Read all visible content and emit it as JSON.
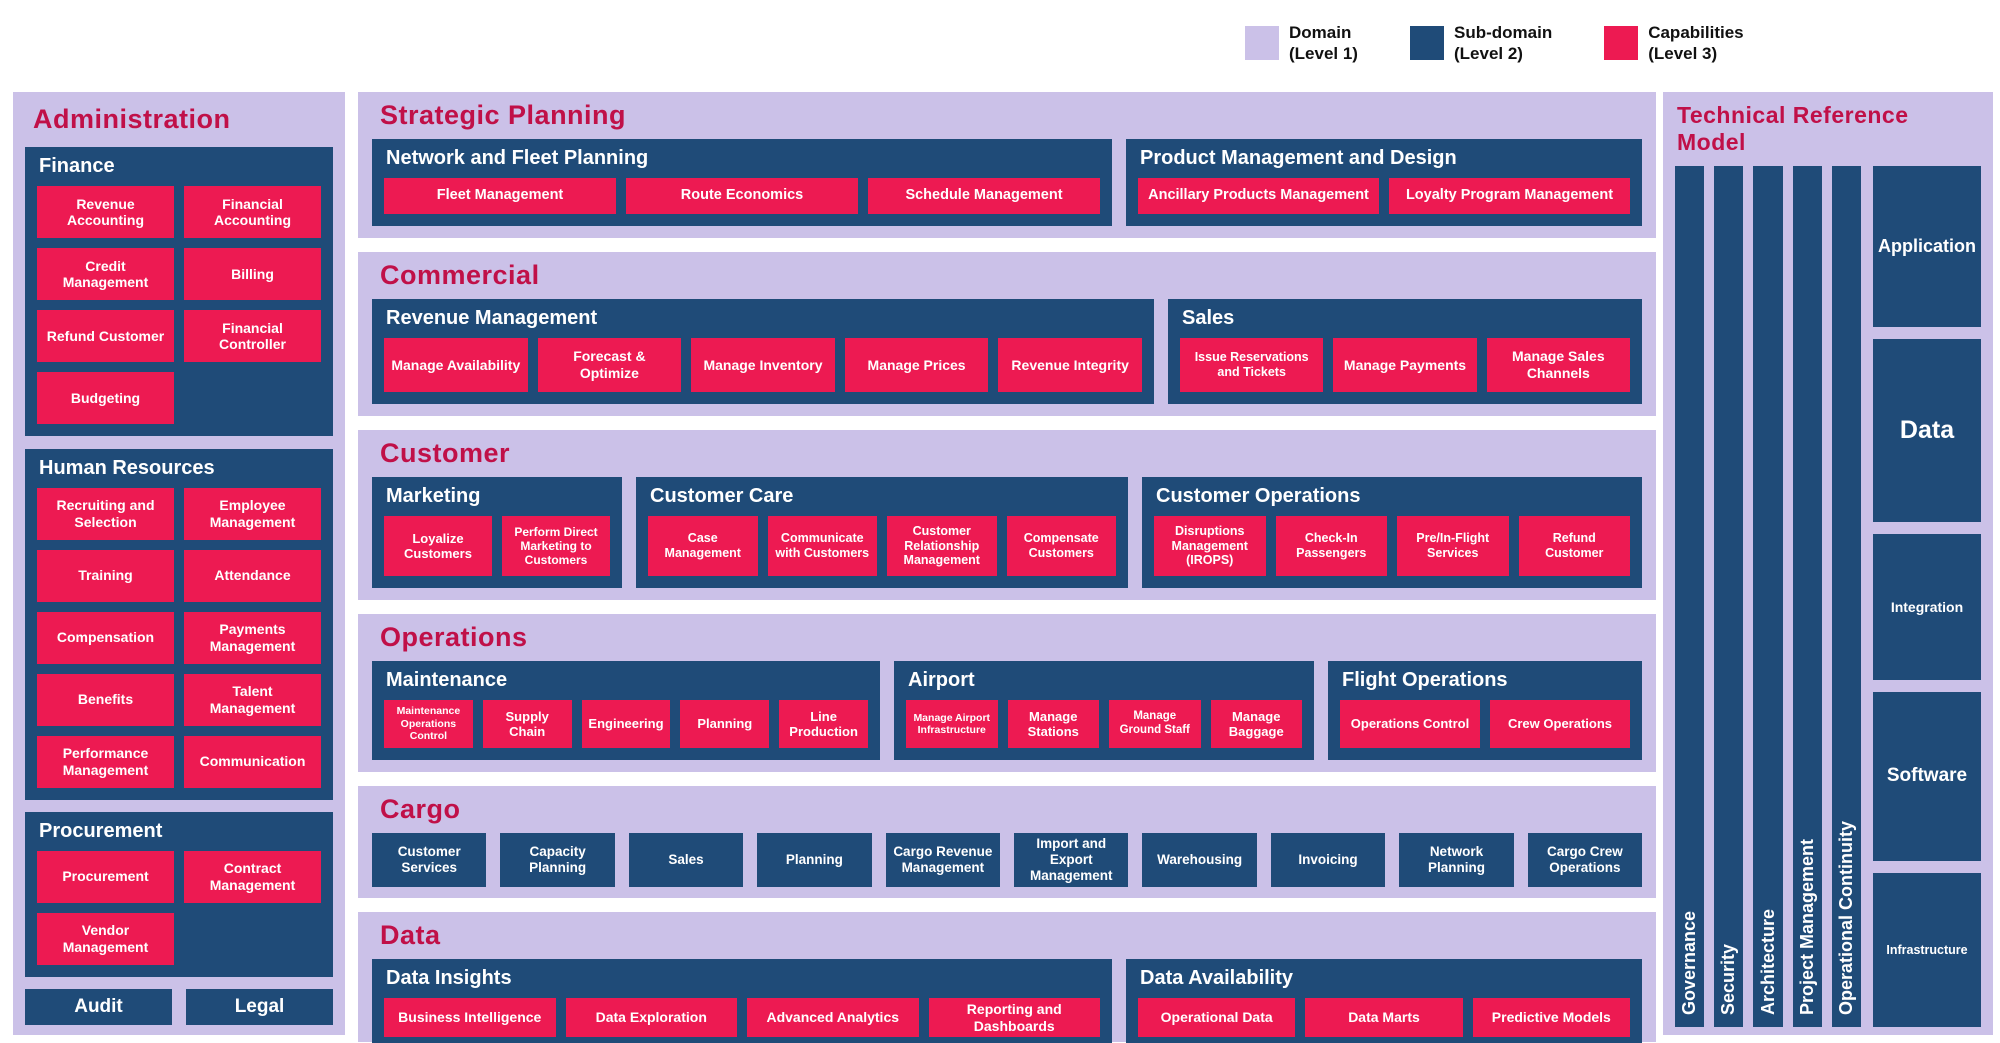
{
  "colors": {
    "domain": "#cbc1e8",
    "subdomain": "#1f4b78",
    "capability": "#ed1a52",
    "domain_title": "#c01048"
  },
  "legend": [
    {
      "label": "Domain\n(Level 1)",
      "color": "#cbc1e8"
    },
    {
      "label": "Sub-domain\n(Level 2)",
      "color": "#1f4b78"
    },
    {
      "label": "Capabilities\n(Level 3)",
      "color": "#ed1a52"
    }
  ],
  "administration": {
    "title": "Administration",
    "subdomains": [
      {
        "title": "Finance",
        "capabilities": [
          "Revenue Accounting",
          "Financial Accounting",
          "Credit Management",
          "Billing",
          "Refund Customer",
          "Financial Controller",
          "Budgeting"
        ]
      },
      {
        "title": "Human Resources",
        "capabilities": [
          "Recruiting and Selection",
          "Employee Management",
          "Training",
          "Attendance",
          "Compensation",
          "Payments Management",
          "Benefits",
          "Talent Management",
          "Performance Management",
          "Communication"
        ]
      },
      {
        "title": "Procurement",
        "capabilities": [
          "Procurement",
          "Contract Management",
          "Vendor Management"
        ]
      }
    ],
    "footer": [
      "Audit",
      "Legal"
    ]
  },
  "domains": [
    {
      "title": "Strategic Planning",
      "subdomains": [
        {
          "title": "Network and Fleet Planning",
          "capabilities": [
            "Fleet Management",
            "Route Economics",
            "Schedule Management"
          ]
        },
        {
          "title": "Product Management and Design",
          "capabilities": [
            "Ancillary Products Management",
            "Loyalty Program Management"
          ]
        }
      ]
    },
    {
      "title": "Commercial",
      "subdomains": [
        {
          "title": "Revenue Management",
          "capabilities": [
            "Manage Availability",
            "Forecast & Optimize",
            "Manage Inventory",
            "Manage Prices",
            "Revenue Integrity"
          ]
        },
        {
          "title": "Sales",
          "capabilities": [
            "Issue Reservations and Tickets",
            "Manage Payments",
            "Manage Sales Channels"
          ]
        }
      ]
    },
    {
      "title": "Customer",
      "subdomains": [
        {
          "title": "Marketing",
          "capabilities": [
            "Loyalize Customers",
            "Perform Direct Marketing to Customers"
          ]
        },
        {
          "title": "Customer Care",
          "capabilities": [
            "Case Management",
            "Communicate with Customers",
            "Customer Relationship Management",
            "Compensate Customers"
          ]
        },
        {
          "title": "Customer Operations",
          "capabilities": [
            "Disruptions Management (IROPS)",
            "Check-In Passengers",
            "Pre/In-Flight Services",
            "Refund Customer"
          ]
        }
      ]
    },
    {
      "title": "Operations",
      "subdomains": [
        {
          "title": "Maintenance",
          "capabilities": [
            "Maintenance Operations Control",
            "Supply Chain",
            "Engineering",
            "Planning",
            "Line Production"
          ]
        },
        {
          "title": "Airport",
          "capabilities": [
            "Manage Airport Infrastructure",
            "Manage Stations",
            "Manage Ground Staff",
            "Manage Baggage"
          ]
        },
        {
          "title": "Flight Operations",
          "capabilities": [
            "Operations Control",
            "Crew Operations"
          ]
        }
      ]
    },
    {
      "title": "Cargo",
      "level2_capabilities": [
        "Customer Services",
        "Capacity Planning",
        "Sales",
        "Planning",
        "Cargo Revenue Management",
        "Import and Export Management",
        "Warehousing",
        "Invoicing",
        "Network Planning",
        "Cargo Crew Operations"
      ]
    },
    {
      "title": "Data",
      "subdomains": [
        {
          "title": "Data Insights",
          "capabilities": [
            "Business Intelligence",
            "Data Exploration",
            "Advanced Analytics",
            "Reporting and Dashboards"
          ]
        },
        {
          "title": "Data Availability",
          "capabilities": [
            "Operational Data",
            "Data Marts",
            "Predictive Models"
          ]
        }
      ]
    }
  ],
  "technical_reference_model": {
    "title": "Technical Reference Model",
    "vertical_bars": [
      "Governance",
      "Security",
      "Architecture",
      "Project Management",
      "Operational Continuity"
    ],
    "layers": [
      "Application",
      "Data",
      "Integration",
      "Software",
      "Infrastructure"
    ]
  }
}
